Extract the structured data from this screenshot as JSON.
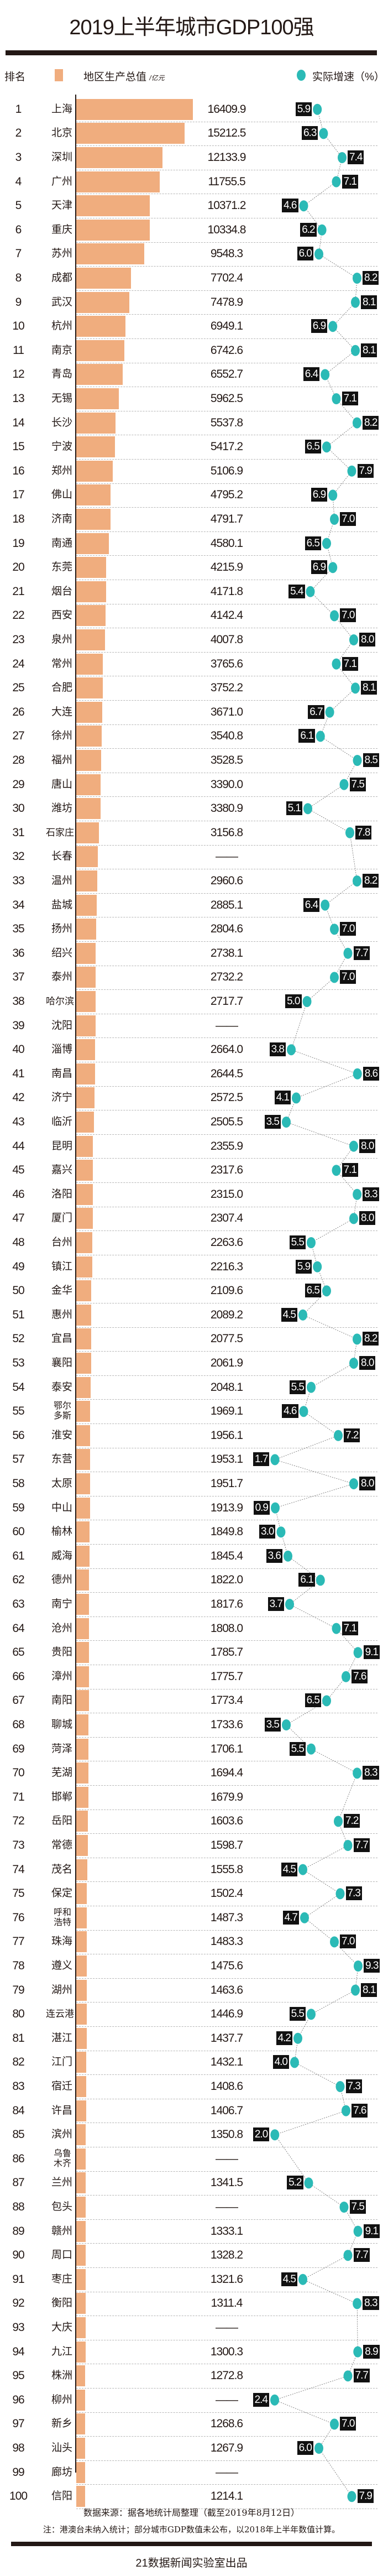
{
  "title": "2019上半年城市GDP100强",
  "legend": {
    "rank_label": "排名",
    "gdp_label": "地区生产总值",
    "gdp_unit": "/亿元",
    "growth_label": "实际增速（%）",
    "bar_color": "#f0ad7e",
    "dot_color": "#2bbab6"
  },
  "missing_mark": "——",
  "chart_data": {
    "type": "bar",
    "orientation": "horizontal",
    "secondary_type": "line (dot plot)",
    "columns": [
      "rank",
      "city",
      "gdp",
      "growth"
    ],
    "rows": [
      [
        1,
        "上海",
        16409.9,
        5.9
      ],
      [
        2,
        "北京",
        15212.5,
        6.3
      ],
      [
        3,
        "深圳",
        12133.9,
        7.4
      ],
      [
        4,
        "广州",
        11755.5,
        7.1
      ],
      [
        5,
        "天津",
        10371.2,
        4.6
      ],
      [
        6,
        "重庆",
        10334.8,
        6.2
      ],
      [
        7,
        "苏州",
        9548.3,
        6.0
      ],
      [
        8,
        "成都",
        7702.4,
        8.2
      ],
      [
        9,
        "武汉",
        7478.9,
        8.1
      ],
      [
        10,
        "杭州",
        6949.1,
        6.9
      ],
      [
        11,
        "南京",
        6742.6,
        8.1
      ],
      [
        12,
        "青岛",
        6552.7,
        6.4
      ],
      [
        13,
        "无锡",
        5962.5,
        7.1
      ],
      [
        14,
        "长沙",
        5537.8,
        8.2
      ],
      [
        15,
        "宁波",
        5417.2,
        6.5
      ],
      [
        16,
        "郑州",
        5106.9,
        7.9
      ],
      [
        17,
        "佛山",
        4795.2,
        6.9
      ],
      [
        18,
        "济南",
        4791.7,
        7.0
      ],
      [
        19,
        "南通",
        4580.1,
        6.5
      ],
      [
        20,
        "东莞",
        4215.9,
        6.9
      ],
      [
        21,
        "烟台",
        4171.8,
        5.4
      ],
      [
        22,
        "西安",
        4142.4,
        7.0
      ],
      [
        23,
        "泉州",
        4007.8,
        8.0
      ],
      [
        24,
        "常州",
        3765.6,
        7.1
      ],
      [
        25,
        "合肥",
        3752.2,
        8.1
      ],
      [
        26,
        "大连",
        3671.0,
        6.7
      ],
      [
        27,
        "徐州",
        3540.8,
        6.1
      ],
      [
        28,
        "福州",
        3528.5,
        8.5
      ],
      [
        29,
        "唐山",
        3390.0,
        7.5
      ],
      [
        30,
        "潍坊",
        3380.9,
        5.1
      ],
      [
        31,
        "石家庄",
        3156.8,
        7.8
      ],
      [
        32,
        "长春",
        null,
        null
      ],
      [
        33,
        "温州",
        2960.6,
        8.2
      ],
      [
        34,
        "盐城",
        2885.1,
        6.4
      ],
      [
        35,
        "扬州",
        2804.6,
        7.0
      ],
      [
        36,
        "绍兴",
        2738.1,
        7.7
      ],
      [
        37,
        "泰州",
        2732.2,
        7.0
      ],
      [
        38,
        "哈尔滨",
        2717.7,
        5.0
      ],
      [
        39,
        "沈阳",
        null,
        null
      ],
      [
        40,
        "淄博",
        2664.0,
        3.8
      ],
      [
        41,
        "南昌",
        2644.5,
        8.6
      ],
      [
        42,
        "济宁",
        2572.5,
        4.1
      ],
      [
        43,
        "临沂",
        2505.5,
        3.5
      ],
      [
        44,
        "昆明",
        2355.9,
        8.0
      ],
      [
        45,
        "嘉兴",
        2317.6,
        7.1
      ],
      [
        46,
        "洛阳",
        2315.0,
        8.3
      ],
      [
        47,
        "厦门",
        2307.4,
        8.0
      ],
      [
        48,
        "台州",
        2263.6,
        5.5
      ],
      [
        49,
        "镇江",
        2216.3,
        5.9
      ],
      [
        50,
        "金华",
        2109.6,
        6.5
      ],
      [
        51,
        "惠州",
        2089.2,
        4.5
      ],
      [
        52,
        "宜昌",
        2077.5,
        8.2
      ],
      [
        53,
        "襄阳",
        2061.9,
        8.0
      ],
      [
        54,
        "泰安",
        2048.1,
        5.5
      ],
      [
        55,
        "鄂尔多斯",
        1969.1,
        4.6
      ],
      [
        56,
        "淮安",
        1956.1,
        7.2
      ],
      [
        57,
        "东营",
        1953.1,
        1.7
      ],
      [
        58,
        "太原",
        1951.7,
        8.0
      ],
      [
        59,
        "中山",
        1913.9,
        0.9
      ],
      [
        60,
        "榆林",
        1849.8,
        3.0
      ],
      [
        61,
        "威海",
        1845.4,
        3.6
      ],
      [
        62,
        "德州",
        1822.0,
        6.1
      ],
      [
        63,
        "南宁",
        1817.6,
        3.7
      ],
      [
        64,
        "沧州",
        1808.0,
        7.1
      ],
      [
        65,
        "贵阳",
        1785.7,
        9.1
      ],
      [
        66,
        "漳州",
        1775.7,
        7.6
      ],
      [
        67,
        "南阳",
        1773.4,
        6.5
      ],
      [
        68,
        "聊城",
        1733.6,
        3.5
      ],
      [
        69,
        "菏泽",
        1706.1,
        5.5
      ],
      [
        70,
        "芜湖",
        1694.4,
        8.3
      ],
      [
        71,
        "邯郸",
        1679.9,
        null
      ],
      [
        72,
        "岳阳",
        1603.6,
        7.2
      ],
      [
        73,
        "常德",
        1598.7,
        7.7
      ],
      [
        74,
        "茂名",
        1555.8,
        4.5
      ],
      [
        75,
        "保定",
        1502.4,
        7.3
      ],
      [
        76,
        "呼和浩特",
        1487.3,
        4.7
      ],
      [
        77,
        "珠海",
        1483.3,
        7.0
      ],
      [
        78,
        "遵义",
        1475.6,
        9.3
      ],
      [
        79,
        "湖州",
        1463.6,
        8.1
      ],
      [
        80,
        "连云港",
        1446.9,
        5.5
      ],
      [
        81,
        "湛江",
        1437.7,
        4.2
      ],
      [
        82,
        "江门",
        1432.1,
        4.0
      ],
      [
        83,
        "宿迁",
        1408.6,
        7.3
      ],
      [
        84,
        "许昌",
        1406.7,
        7.6
      ],
      [
        85,
        "滨州",
        1350.8,
        2.0
      ],
      [
        86,
        "乌鲁木齐",
        null,
        null
      ],
      [
        87,
        "兰州",
        1341.5,
        5.2
      ],
      [
        88,
        "包头",
        null,
        7.5
      ],
      [
        89,
        "赣州",
        1333.1,
        9.1
      ],
      [
        90,
        "周口",
        1328.2,
        7.7
      ],
      [
        91,
        "枣庄",
        1321.6,
        4.5
      ],
      [
        92,
        "衡阳",
        1311.4,
        8.3
      ],
      [
        93,
        "大庆",
        null,
        null
      ],
      [
        94,
        "九江",
        1300.3,
        8.9
      ],
      [
        95,
        "株洲",
        1272.8,
        7.7
      ],
      [
        96,
        "柳州",
        null,
        2.4
      ],
      [
        97,
        "新乡",
        1268.6,
        7.0
      ],
      [
        98,
        "汕头",
        1267.9,
        6.0
      ],
      [
        99,
        "廊坊",
        null,
        null
      ],
      [
        100,
        "信阳",
        1214.1,
        7.9
      ]
    ]
  },
  "footer": {
    "source": "数据来源：据各地统计局整理（截至2019年8月12日）",
    "note": "注：港澳台未纳入统计；部分城市GDP数值未公布，以2018年上半年数值计算。",
    "credit": "21数据新闻实验室出品"
  }
}
